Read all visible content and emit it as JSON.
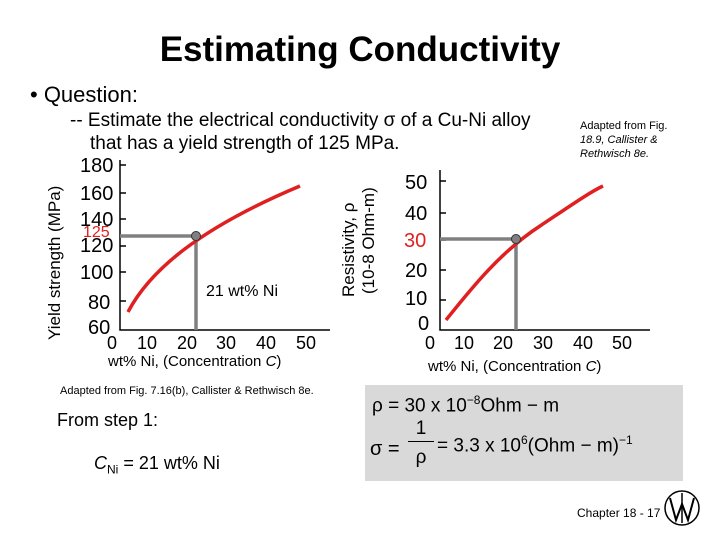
{
  "title": "Estimating Conductivity",
  "bullet": "• Question:",
  "question": {
    "line1_a": "-- Estimate the electrical conductivity ",
    "sigma": "σ",
    "line1_b": " of a Cu-Ni alloy",
    "line2": "that has a yield strength of 125 MPa."
  },
  "source_right": [
    "Adapted from Fig.",
    "18.9, Callister &",
    "Rethwisch 8e."
  ],
  "source_left": "Adapted from Fig. 7.16(b), Callister & Rethwisch 8e.",
  "left_plot": {
    "ylabel": "Yield strength (MPa)",
    "yticks": [
      "180",
      "160",
      "140",
      "125",
      "120",
      "100",
      "80",
      "60"
    ],
    "xticks": [
      "0",
      "10",
      "20",
      "30",
      "40",
      "50"
    ],
    "xlabel_a": "wt% Ni, (Concentration ",
    "xlabel_c": "C",
    "xlabel_b": ")",
    "annotation": "21 wt% Ni",
    "curve_color": "#e02020",
    "guide_color": "#808080"
  },
  "right_plot": {
    "ylabel_1": "Resistivity, ρ",
    "ylabel_2": "(10-8 Ohm-m)",
    "yticks": [
      "50",
      "40",
      "30",
      "20",
      "10",
      "0"
    ],
    "xticks": [
      "0",
      "10",
      "20",
      "30",
      "40",
      "50"
    ],
    "xlabel_a": "wt% Ni, (Concentration ",
    "xlabel_c": "C",
    "xlabel_b": ")",
    "curve_color": "#e02020"
  },
  "step_text": "From step 1:",
  "cni": {
    "c": "C",
    "sub": "Ni",
    "rest": " = 21 wt% Ni"
  },
  "formulas": {
    "rho": "ρ = 30 x 10",
    "rho_exp": "−8",
    "rho_unit": "Ohm − m",
    "sigma": "σ =",
    "frac_num": "1",
    "frac_den": "ρ",
    "sigma_val": "= 3.3 x 10",
    "sigma_exp": "6",
    "sigma_unit": "(Ohm − m)",
    "sigma_unit_exp": "−1"
  },
  "chapter": "Chapter 18 - 17"
}
